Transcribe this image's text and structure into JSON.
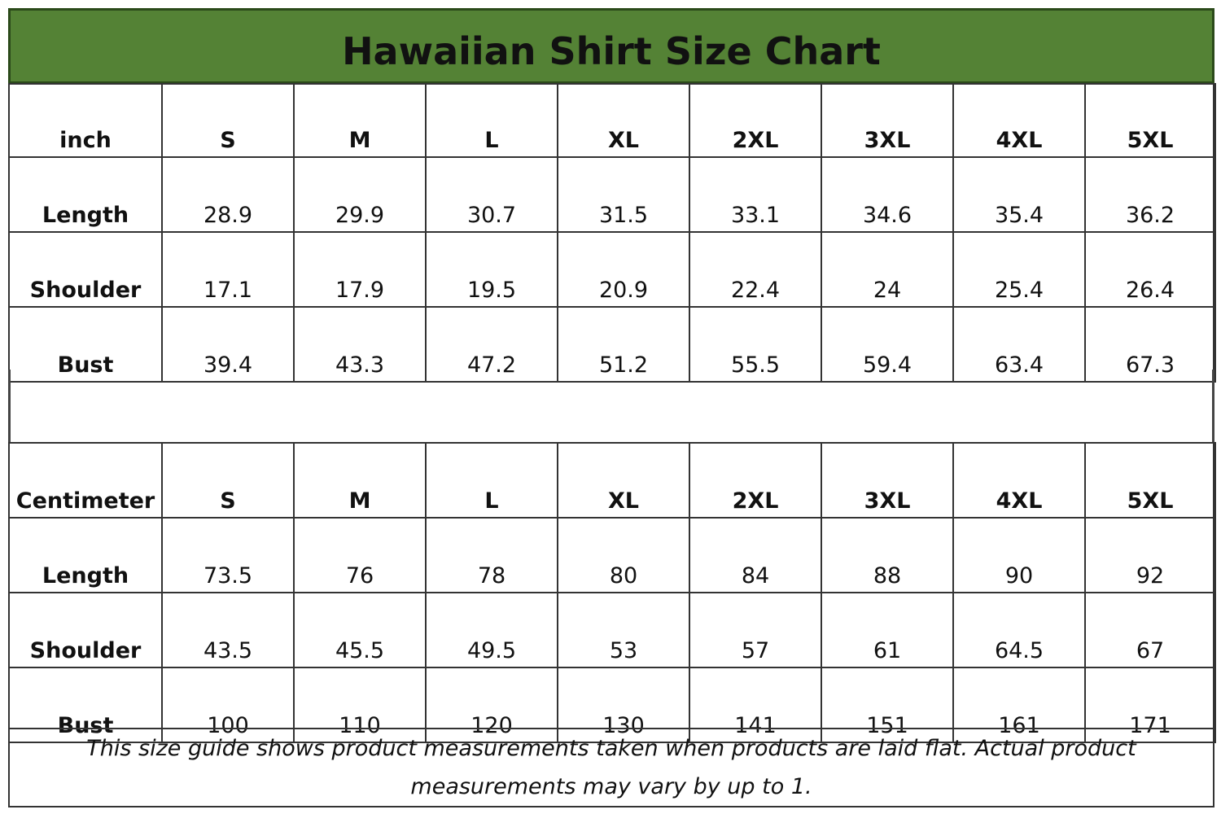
{
  "title": "Hawaiian Shirt Size Chart",
  "chart_data": {
    "type": "table",
    "title": "Hawaiian Shirt Size Chart",
    "tables": [
      {
        "unit": "inch",
        "sizes": [
          "S",
          "M",
          "L",
          "XL",
          "2XL",
          "3XL",
          "4XL",
          "5XL"
        ],
        "rows": [
          {
            "label": "Length",
            "values": [
              "28.9",
              "29.9",
              "30.7",
              "31.5",
              "33.1",
              "34.6",
              "35.4",
              "36.2"
            ]
          },
          {
            "label": "Shoulder",
            "values": [
              "17.1",
              "17.9",
              "19.5",
              "20.9",
              "22.4",
              "24",
              "25.4",
              "26.4"
            ]
          },
          {
            "label": "Bust",
            "values": [
              "39.4",
              "43.3",
              "47.2",
              "51.2",
              "55.5",
              "59.4",
              "63.4",
              "67.3"
            ]
          }
        ]
      },
      {
        "unit": "Centimeter",
        "sizes": [
          "S",
          "M",
          "L",
          "XL",
          "2XL",
          "3XL",
          "4XL",
          "5XL"
        ],
        "rows": [
          {
            "label": "Length",
            "values": [
              "73.5",
              "76",
              "78",
              "80",
              "84",
              "88",
              "90",
              "92"
            ]
          },
          {
            "label": "Shoulder",
            "values": [
              "43.5",
              "45.5",
              "49.5",
              "53",
              "57",
              "61",
              "64.5",
              "67"
            ]
          },
          {
            "label": "Bust",
            "values": [
              "100",
              "110",
              "120",
              "130",
              "141",
              "151",
              "161",
              "171"
            ]
          }
        ]
      }
    ]
  },
  "note": "This size guide shows product measurements taken when products are laid flat. Actual product measurements may vary by up to 1.",
  "colors": {
    "title_bg": "#548235",
    "border": "#333333"
  }
}
